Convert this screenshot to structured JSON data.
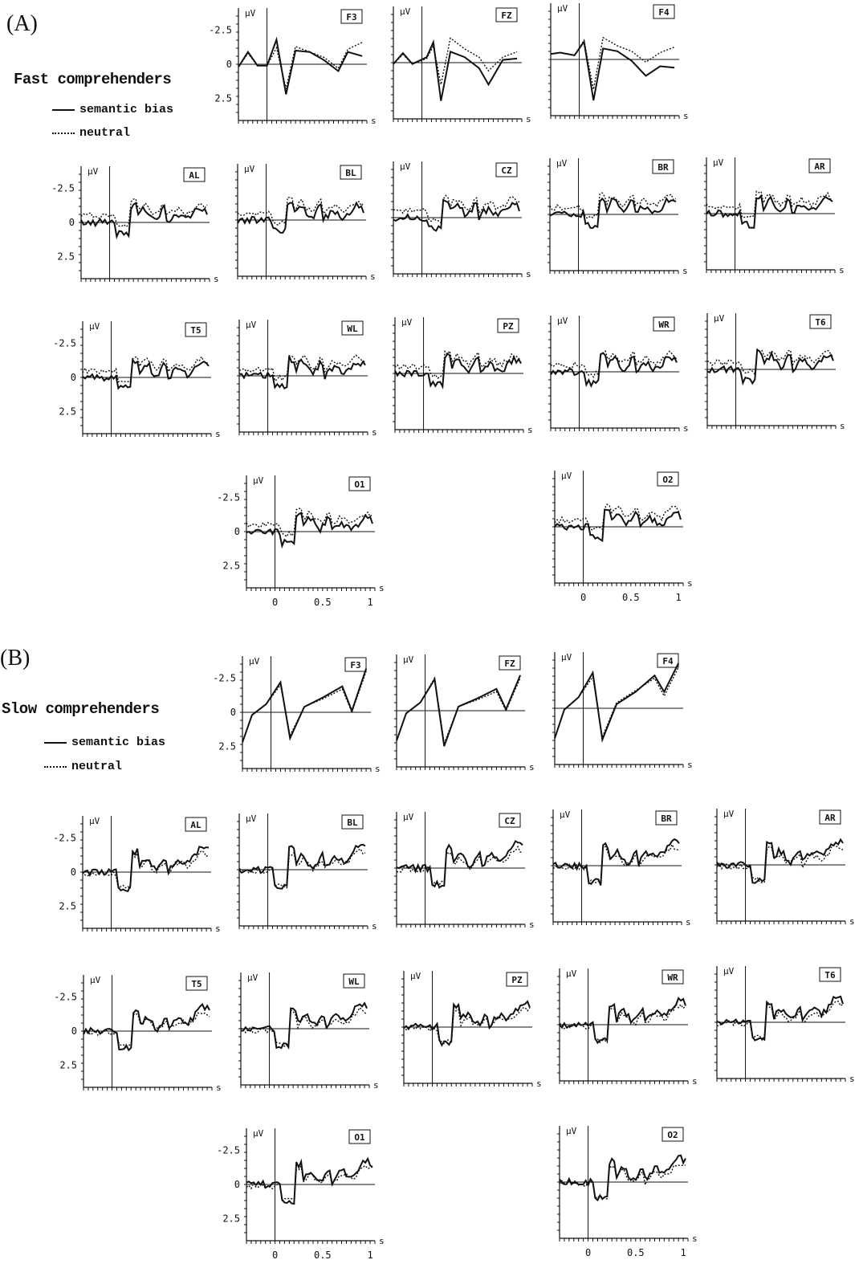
{
  "sections": [
    {
      "letter": "(A)",
      "title": "Fast comprehenders",
      "legend_solid": "semantic bias",
      "legend_dotted": "neutral"
    },
    {
      "letter": "(B)",
      "title": "Slow comprehenders",
      "legend_solid": "semantic bias",
      "legend_dotted": "neutral"
    }
  ],
  "chart_data": {
    "type": "line",
    "y_unit": "µV",
    "x_unit": "s",
    "y_ticks": [
      "-2.5",
      "0",
      "2.5"
    ],
    "y_reversed": true,
    "x_ticks": [
      "0",
      "0.5",
      "1"
    ],
    "xlim": [
      -0.3,
      1.05
    ],
    "series_names": [
      "semantic bias",
      "neutral"
    ],
    "groups": [
      {
        "name": "Fast comprehenders",
        "electrodes": [
          {
            "label": "F3",
            "bias": [
              [
                -0.3,
                0.2
              ],
              [
                -0.2,
                -0.9
              ],
              [
                -0.1,
                0.1
              ],
              [
                0,
                0.1
              ],
              [
                0.1,
                -1.8
              ],
              [
                0.2,
                2.2
              ],
              [
                0.3,
                -1.0
              ],
              [
                0.45,
                -0.9
              ],
              [
                0.6,
                -0.3
              ],
              [
                0.75,
                0.5
              ],
              [
                0.85,
                -0.9
              ],
              [
                1.0,
                -0.6
              ]
            ],
            "neutral": [
              [
                -0.3,
                0.2
              ],
              [
                -0.2,
                -0.8
              ],
              [
                -0.1,
                0.1
              ],
              [
                0,
                0.1
              ],
              [
                0.1,
                -1.2
              ],
              [
                0.2,
                1.8
              ],
              [
                0.3,
                -1.3
              ],
              [
                0.45,
                -0.9
              ],
              [
                0.6,
                -0.5
              ],
              [
                0.75,
                0.3
              ],
              [
                0.85,
                -1.1
              ],
              [
                1.0,
                -1.6
              ]
            ]
          },
          {
            "label": "FZ",
            "bias": [
              [
                -0.3,
                0.1
              ],
              [
                -0.2,
                -0.7
              ],
              [
                -0.1,
                0.1
              ],
              [
                0.05,
                -0.4
              ],
              [
                0.12,
                -1.5
              ],
              [
                0.2,
                2.8
              ],
              [
                0.3,
                -0.8
              ],
              [
                0.45,
                -0.4
              ],
              [
                0.6,
                0.4
              ],
              [
                0.7,
                1.6
              ],
              [
                0.85,
                -0.2
              ],
              [
                1.0,
                -0.3
              ]
            ],
            "neutral": [
              [
                -0.3,
                0.1
              ],
              [
                -0.2,
                -0.6
              ],
              [
                -0.1,
                0.1
              ],
              [
                0.05,
                -0.3
              ],
              [
                0.12,
                -1.2
              ],
              [
                0.2,
                1.6
              ],
              [
                0.3,
                -1.8
              ],
              [
                0.45,
                -1.0
              ],
              [
                0.6,
                -0.4
              ],
              [
                0.7,
                0.6
              ],
              [
                0.85,
                -0.4
              ],
              [
                1.0,
                -0.8
              ]
            ]
          },
          {
            "label": "F4",
            "bias": [
              [
                -0.3,
                -0.4
              ],
              [
                -0.2,
                -0.5
              ],
              [
                -0.05,
                -0.3
              ],
              [
                0.05,
                -1.3
              ],
              [
                0.15,
                3.0
              ],
              [
                0.25,
                -0.8
              ],
              [
                0.4,
                -0.6
              ],
              [
                0.55,
                0.1
              ],
              [
                0.7,
                1.2
              ],
              [
                0.85,
                0.5
              ],
              [
                1.0,
                0.6
              ]
            ],
            "neutral": [
              [
                -0.3,
                -0.4
              ],
              [
                -0.2,
                -0.5
              ],
              [
                -0.05,
                -0.3
              ],
              [
                0.05,
                -1.4
              ],
              [
                0.15,
                2.2
              ],
              [
                0.25,
                -1.6
              ],
              [
                0.4,
                -1.0
              ],
              [
                0.55,
                -0.6
              ],
              [
                0.7,
                0.2
              ],
              [
                0.85,
                -0.5
              ],
              [
                1.0,
                -0.9
              ]
            ]
          }
        ]
      },
      {
        "name": "Slow comprehenders",
        "electrodes": [
          {
            "label": "F3",
            "bias": [
              [
                -0.3,
                2.2
              ],
              [
                -0.2,
                0.2
              ],
              [
                -0.05,
                -0.6
              ],
              [
                0.1,
                -2.2
              ],
              [
                0.2,
                1.9
              ],
              [
                0.35,
                -0.4
              ],
              [
                0.55,
                -1.1
              ],
              [
                0.75,
                -1.9
              ],
              [
                0.85,
                -0.1
              ],
              [
                1.0,
                -3.2
              ]
            ],
            "neutral": [
              [
                -0.3,
                2.2
              ],
              [
                -0.2,
                0.2
              ],
              [
                -0.05,
                -0.6
              ],
              [
                0.1,
                -2.0
              ],
              [
                0.2,
                1.7
              ],
              [
                0.35,
                -0.4
              ],
              [
                0.55,
                -1.0
              ],
              [
                0.75,
                -1.7
              ],
              [
                0.85,
                0.0
              ],
              [
                1.0,
                -3.0
              ]
            ]
          },
          {
            "label": "FZ",
            "bias": [
              [
                -0.3,
                2.2
              ],
              [
                -0.2,
                0.2
              ],
              [
                -0.05,
                -0.6
              ],
              [
                0.1,
                -2.3
              ],
              [
                0.2,
                2.6
              ],
              [
                0.35,
                -0.3
              ],
              [
                0.55,
                -0.9
              ],
              [
                0.75,
                -1.6
              ],
              [
                0.85,
                -0.1
              ],
              [
                1.0,
                -2.6
              ]
            ],
            "neutral": [
              [
                -0.3,
                2.2
              ],
              [
                -0.2,
                0.2
              ],
              [
                -0.05,
                -0.6
              ],
              [
                0.1,
                -2.4
              ],
              [
                0.2,
                2.4
              ],
              [
                0.35,
                -0.3
              ],
              [
                0.55,
                -0.8
              ],
              [
                0.75,
                -1.4
              ],
              [
                0.85,
                0.0
              ],
              [
                1.0,
                -2.4
              ]
            ]
          },
          {
            "label": "F4",
            "bias": [
              [
                -0.3,
                2.2
              ],
              [
                -0.2,
                0.1
              ],
              [
                -0.05,
                -0.8
              ],
              [
                0.1,
                -2.6
              ],
              [
                0.2,
                2.3
              ],
              [
                0.35,
                -0.3
              ],
              [
                0.55,
                -1.2
              ],
              [
                0.75,
                -2.4
              ],
              [
                0.85,
                -1.2
              ],
              [
                1.0,
                -3.3
              ]
            ],
            "neutral": [
              [
                -0.3,
                2.2
              ],
              [
                -0.2,
                0.1
              ],
              [
                -0.05,
                -0.8
              ],
              [
                0.1,
                -2.3
              ],
              [
                0.2,
                2.1
              ],
              [
                0.35,
                -0.4
              ],
              [
                0.55,
                -1.3
              ],
              [
                0.75,
                -2.2
              ],
              [
                0.85,
                -0.9
              ],
              [
                1.0,
                -3.0
              ]
            ]
          }
        ]
      }
    ]
  }
}
